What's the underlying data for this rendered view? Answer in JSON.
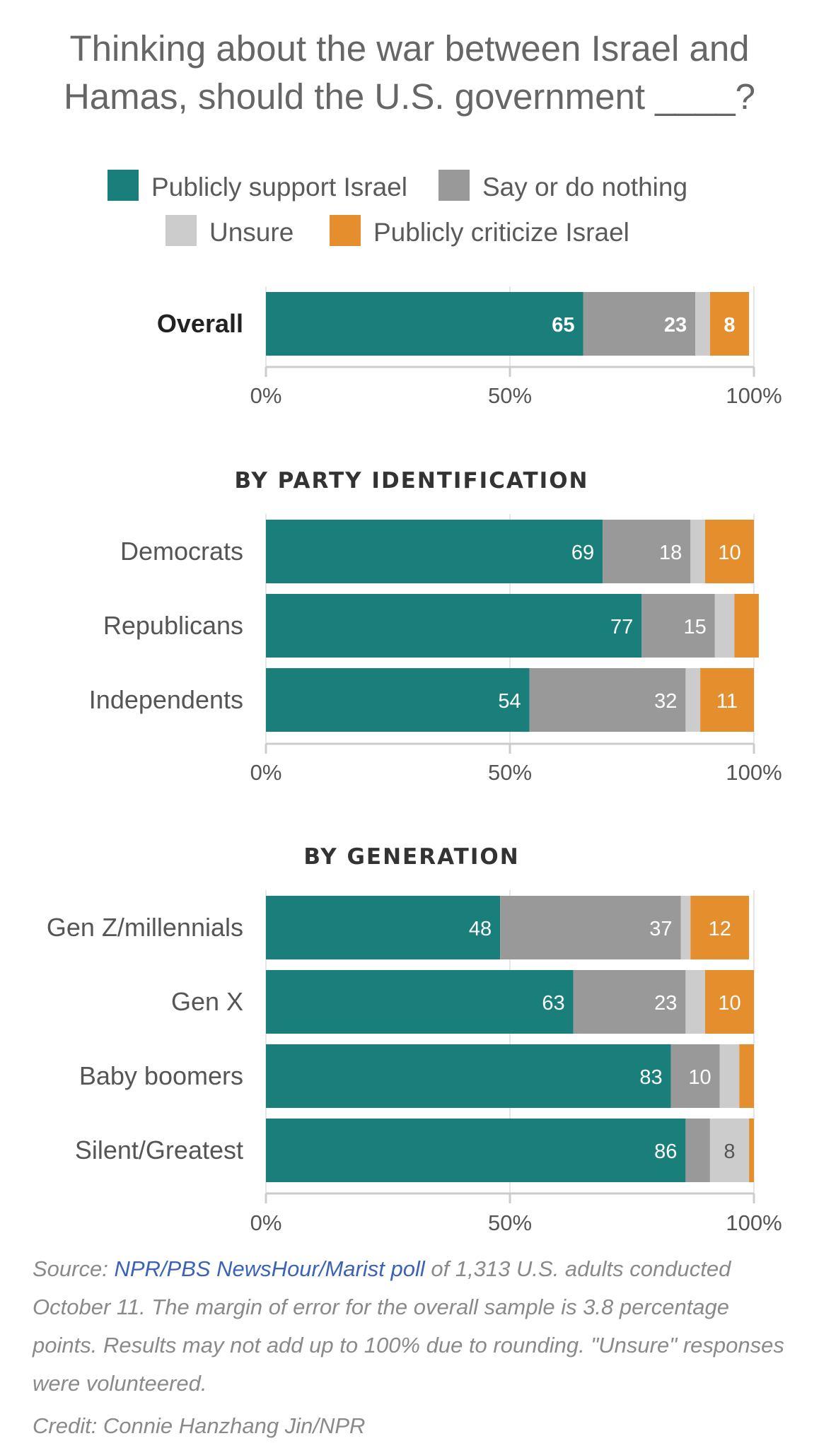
{
  "title_lines": [
    "Thinking about the war between Israel and",
    "Hamas, should the U.S. government ____?"
  ],
  "colors": {
    "support": "#1a7f7a",
    "nothing": "#999999",
    "unsure": "#cccccc",
    "criticize": "#e58e2e"
  },
  "legend": [
    {
      "key": "support",
      "label": "Publicly support Israel"
    },
    {
      "key": "nothing",
      "label": "Say or do nothing"
    },
    {
      "key": "unsure",
      "label": "Unsure"
    },
    {
      "key": "criticize",
      "label": "Publicly criticize Israel"
    }
  ],
  "chart_data": [
    {
      "type": "bar",
      "orientation": "horizontal",
      "stacked": true,
      "title": "",
      "categories": [
        "Overall"
      ],
      "series": [
        {
          "name": "Publicly support Israel",
          "values": [
            65
          ]
        },
        {
          "name": "Say or do nothing",
          "values": [
            23
          ]
        },
        {
          "name": "Unsure",
          "values": [
            3
          ]
        },
        {
          "name": "Publicly criticize Israel",
          "values": [
            8
          ]
        }
      ],
      "value_labels": [
        [
          "65",
          "23",
          "",
          "8"
        ]
      ],
      "xlim": [
        0,
        100
      ],
      "x_ticks": [
        "0%",
        "50%",
        "100%"
      ]
    },
    {
      "type": "bar",
      "orientation": "horizontal",
      "stacked": true,
      "title": "BY PARTY IDENTIFICATION",
      "categories": [
        "Democrats",
        "Republicans",
        "Independents"
      ],
      "series": [
        {
          "name": "Publicly support Israel",
          "values": [
            69,
            77,
            54
          ]
        },
        {
          "name": "Say or do nothing",
          "values": [
            18,
            15,
            32
          ]
        },
        {
          "name": "Unsure",
          "values": [
            3,
            4,
            3
          ]
        },
        {
          "name": "Publicly criticize Israel",
          "values": [
            10,
            5,
            11
          ]
        }
      ],
      "value_labels": [
        [
          "69",
          "18",
          "",
          "10"
        ],
        [
          "77",
          "15",
          "",
          ""
        ],
        [
          "54",
          "32",
          "",
          "11"
        ]
      ],
      "xlim": [
        0,
        100
      ],
      "x_ticks": [
        "0%",
        "50%",
        "100%"
      ]
    },
    {
      "type": "bar",
      "orientation": "horizontal",
      "stacked": true,
      "title": "BY GENERATION",
      "categories": [
        "Gen Z/millennials",
        "Gen X",
        "Baby boomers",
        "Silent/Greatest"
      ],
      "series": [
        {
          "name": "Publicly support Israel",
          "values": [
            48,
            63,
            83,
            86
          ]
        },
        {
          "name": "Say or do nothing",
          "values": [
            37,
            23,
            10,
            5
          ]
        },
        {
          "name": "Unsure",
          "values": [
            2,
            4,
            4,
            8
          ]
        },
        {
          "name": "Publicly criticize Israel",
          "values": [
            12,
            10,
            3,
            1
          ]
        }
      ],
      "value_labels": [
        [
          "48",
          "37",
          "",
          "12"
        ],
        [
          "63",
          "23",
          "",
          "10"
        ],
        [
          "83",
          "10",
          "",
          ""
        ],
        [
          "86",
          "",
          "8",
          ""
        ]
      ],
      "xlim": [
        0,
        100
      ],
      "x_ticks": [
        "0%",
        "50%",
        "100%"
      ]
    }
  ],
  "footnote": {
    "prefix": "Source: ",
    "link": "NPR/PBS NewsHour/Marist poll",
    "rest": " of 1,313 U.S. adults conducted October 11. The margin of error for the overall sample is 3.8 percentage points. Results may not add up to 100% due to rounding. \"Unsure\" responses were volunteered."
  },
  "credit": "Credit: Connie Hanzhang Jin/NPR"
}
